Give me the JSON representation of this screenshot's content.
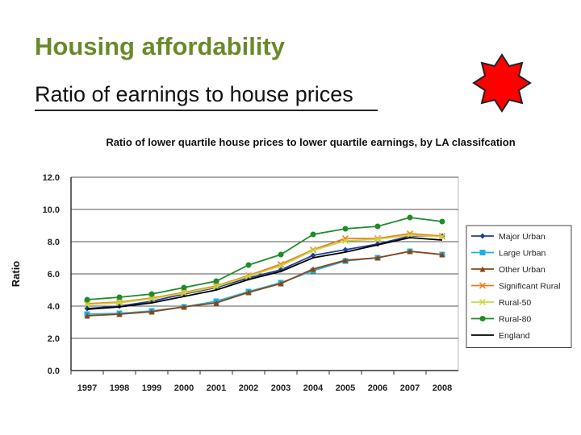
{
  "slide": {
    "title": "Housing affordability",
    "subtitle": "Ratio of earnings to house prices"
  },
  "colors": {
    "title": "#6a8a2a",
    "badge_fill": "#ff0000",
    "badge_stroke": "#222222"
  },
  "badge_icon": "red-star-octagon-icon",
  "chart_data": {
    "type": "line",
    "title": "Ratio of lower quartile house prices to lower quartile earnings, by LA classifcation",
    "ylabel": "Ratio",
    "xlabel": "",
    "categories": [
      "1997",
      "1998",
      "1999",
      "2000",
      "2001",
      "2002",
      "2003",
      "2004",
      "2005",
      "2006",
      "2007",
      "2008"
    ],
    "ylim": [
      0,
      12
    ],
    "yticks": [
      "0.0",
      "2.0",
      "4.0",
      "6.0",
      "8.0",
      "10.0",
      "12.0"
    ],
    "grid": true,
    "legend_position": "right",
    "series": [
      {
        "name": "Major Urban",
        "color": "#1f3d9c",
        "marker": "diamond",
        "values": [
          3.85,
          4.0,
          4.3,
          4.75,
          5.15,
          5.75,
          6.25,
          7.15,
          7.5,
          7.85,
          8.35,
          8.35
        ]
      },
      {
        "name": "Large Urban",
        "color": "#22b0e0",
        "marker": "square",
        "values": [
          3.5,
          3.55,
          3.7,
          3.95,
          4.3,
          4.9,
          5.45,
          6.2,
          6.8,
          7.0,
          7.4,
          7.2
        ]
      },
      {
        "name": "Other Urban",
        "color": "#8b4513",
        "marker": "triangle",
        "values": [
          3.4,
          3.5,
          3.65,
          3.95,
          4.2,
          4.85,
          5.4,
          6.3,
          6.85,
          7.0,
          7.4,
          7.2
        ]
      },
      {
        "name": "Significant Rural",
        "color": "#f07820",
        "marker": "x",
        "values": [
          4.15,
          4.25,
          4.5,
          4.85,
          5.25,
          5.9,
          6.6,
          7.5,
          8.2,
          8.2,
          8.5,
          8.35
        ]
      },
      {
        "name": "Rural-50",
        "color": "#c8d840",
        "marker": "x",
        "values": [
          4.1,
          4.2,
          4.45,
          4.8,
          5.2,
          5.85,
          6.5,
          7.45,
          8.05,
          8.15,
          8.4,
          8.3
        ]
      },
      {
        "name": "Rural-80",
        "color": "#1e8c2a",
        "marker": "circle",
        "values": [
          4.4,
          4.55,
          4.75,
          5.15,
          5.55,
          6.55,
          7.2,
          8.45,
          8.8,
          8.95,
          9.5,
          9.25
        ]
      },
      {
        "name": "England",
        "color": "#000000",
        "marker": "none",
        "values": [
          3.8,
          3.95,
          4.2,
          4.6,
          5.0,
          5.65,
          6.15,
          7.0,
          7.35,
          7.8,
          8.25,
          8.1
        ]
      }
    ]
  }
}
